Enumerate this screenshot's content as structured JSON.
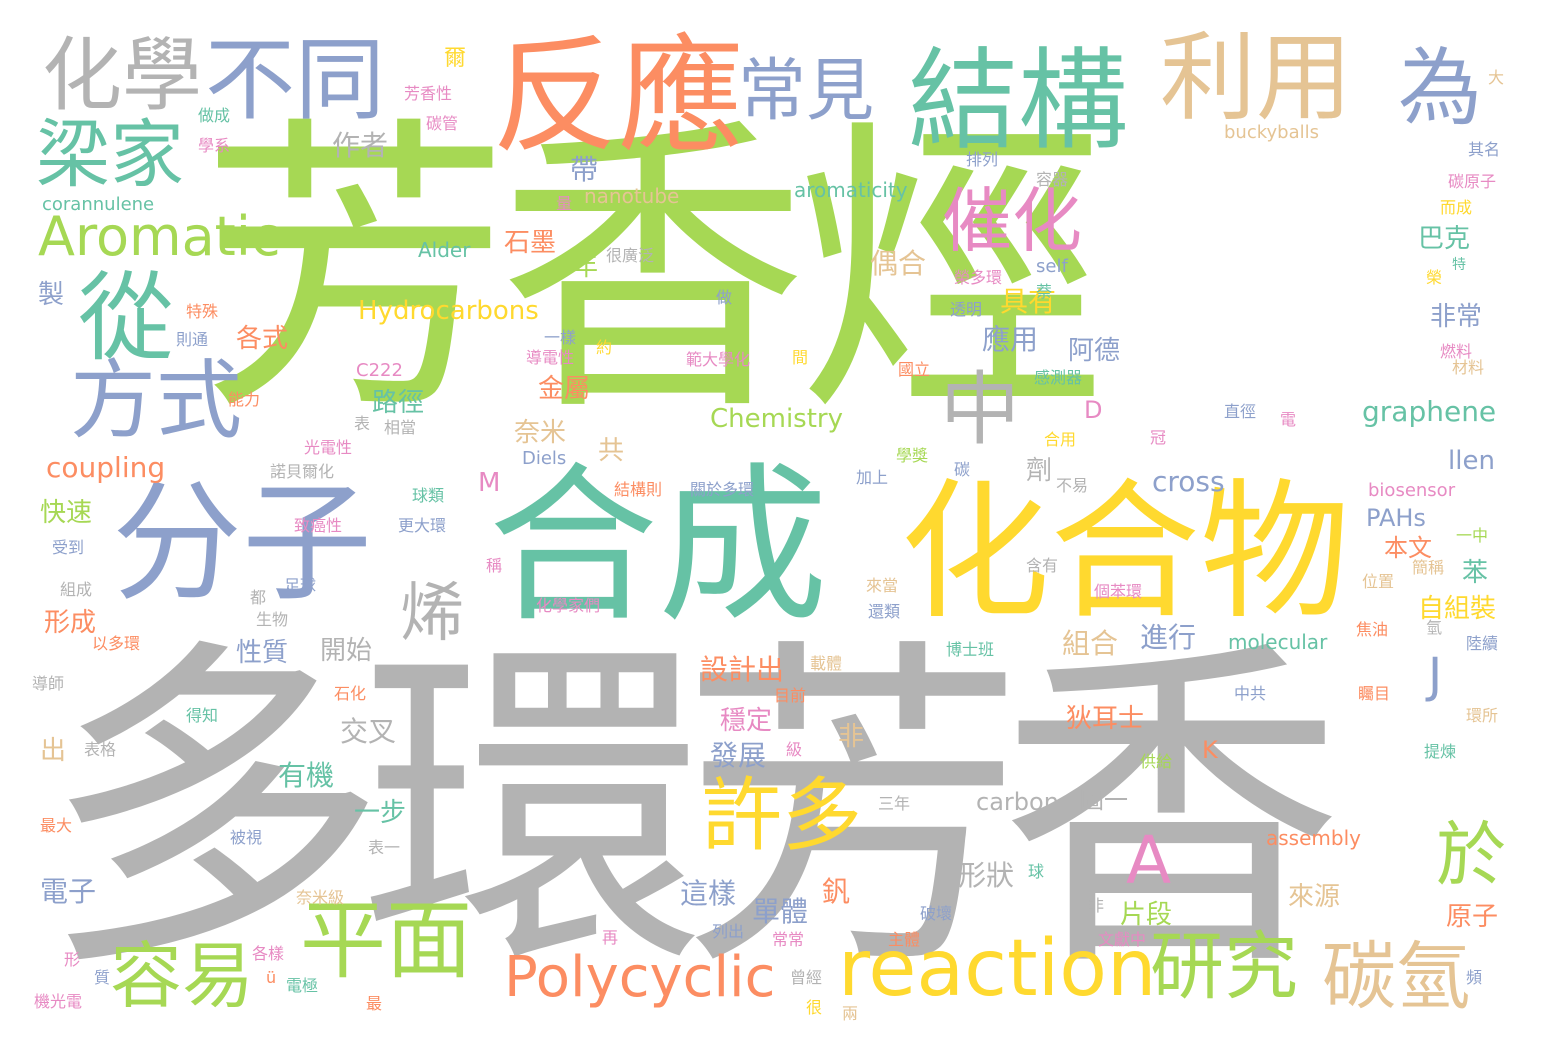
{
  "palette": {
    "grey": "#b3b3b3",
    "green": "#a6d854",
    "teal": "#66c2a5",
    "orange": "#fc8d62",
    "blue": "#8da0cb",
    "yellow": "#ffd92f",
    "tan": "#e5c494",
    "pink": "#e78ac3"
  },
  "words": [
    {
      "text": "芳香烴"
    },
    {
      "text": "多環芳香"
    },
    {
      "text": "合成"
    },
    {
      "text": "化合物"
    },
    {
      "text": "分子"
    },
    {
      "text": "反應"
    },
    {
      "text": "結構"
    },
    {
      "text": "利用"
    },
    {
      "text": "不同"
    },
    {
      "text": "化學"
    },
    {
      "text": "為"
    },
    {
      "text": "常見"
    },
    {
      "text": "梁家"
    },
    {
      "text": "催化"
    },
    {
      "text": "從"
    },
    {
      "text": "Aromatic"
    },
    {
      "text": "方式"
    },
    {
      "text": "中"
    },
    {
      "text": "烯"
    },
    {
      "text": "許多"
    },
    {
      "text": "平面"
    },
    {
      "text": "容易"
    },
    {
      "text": "reaction"
    },
    {
      "text": "研究"
    },
    {
      "text": "碳氫"
    },
    {
      "text": "Polycyclic"
    },
    {
      "text": "於"
    },
    {
      "text": "A"
    },
    {
      "text": "Hydrocarbons"
    },
    {
      "text": "Chemistry"
    },
    {
      "text": "graphene"
    },
    {
      "text": "coupling"
    },
    {
      "text": "cross"
    },
    {
      "text": "carbon"
    },
    {
      "text": "aromaticity"
    },
    {
      "text": "nanotube"
    },
    {
      "text": "corannulene"
    },
    {
      "text": "buckyballs"
    },
    {
      "text": "molecular"
    },
    {
      "text": "biosensor"
    },
    {
      "text": "assembly"
    },
    {
      "text": "PAHs"
    },
    {
      "text": "llen"
    },
    {
      "text": "Diels"
    },
    {
      "text": "Alder"
    },
    {
      "text": "self"
    },
    {
      "text": "C222"
    },
    {
      "text": "作者"
    },
    {
      "text": "帶"
    },
    {
      "text": "石墨"
    },
    {
      "text": "年"
    },
    {
      "text": "偶合"
    },
    {
      "text": "具有"
    },
    {
      "text": "應用"
    },
    {
      "text": "阿德"
    },
    {
      "text": "巴克"
    },
    {
      "text": "非常"
    },
    {
      "text": "路徑"
    },
    {
      "text": "金屬"
    },
    {
      "text": "奈米"
    },
    {
      "text": "各式"
    },
    {
      "text": "製"
    },
    {
      "text": "快速"
    },
    {
      "text": "形成"
    },
    {
      "text": "性質"
    },
    {
      "text": "開始"
    },
    {
      "text": "組合"
    },
    {
      "text": "進行"
    },
    {
      "text": "自組裝"
    },
    {
      "text": "設計出"
    },
    {
      "text": "本文"
    },
    {
      "text": "苯"
    },
    {
      "text": "狄耳士"
    },
    {
      "text": "穩定"
    },
    {
      "text": "發展"
    },
    {
      "text": "有機"
    },
    {
      "text": "交叉"
    },
    {
      "text": "一步"
    },
    {
      "text": "電子"
    },
    {
      "text": "這樣"
    },
    {
      "text": "單體"
    },
    {
      "text": "形狀"
    },
    {
      "text": "片段"
    },
    {
      "text": "來源"
    },
    {
      "text": "原子"
    },
    {
      "text": "出"
    },
    {
      "text": "非"
    },
    {
      "text": "圖一"
    },
    {
      "text": "劑"
    },
    {
      "text": "共"
    },
    {
      "text": "M"
    },
    {
      "text": "D"
    },
    {
      "text": "J"
    },
    {
      "text": "K"
    },
    {
      "text": "釩"
    },
    {
      "text": "爾"
    },
    {
      "text": "芳香性"
    },
    {
      "text": "做成"
    },
    {
      "text": "碳管"
    },
    {
      "text": "學系"
    },
    {
      "text": "大"
    },
    {
      "text": "其名"
    },
    {
      "text": "碳原子"
    },
    {
      "text": "而成"
    },
    {
      "text": "容器"
    },
    {
      "text": "排列"
    },
    {
      "text": "量"
    },
    {
      "text": "很廣泛"
    },
    {
      "text": "榮多環"
    },
    {
      "text": "透明"
    },
    {
      "text": "萘"
    },
    {
      "text": "特殊"
    },
    {
      "text": "則通"
    },
    {
      "text": "做"
    },
    {
      "text": "一樣"
    },
    {
      "text": "導電性"
    },
    {
      "text": "約"
    },
    {
      "text": "範大學化"
    },
    {
      "text": "間"
    },
    {
      "text": "能力"
    },
    {
      "text": "國立"
    },
    {
      "text": "感測器"
    },
    {
      "text": "燃料"
    },
    {
      "text": "材料"
    },
    {
      "text": "直徑"
    },
    {
      "text": "電"
    },
    {
      "text": "光電性"
    },
    {
      "text": "相當"
    },
    {
      "text": "諾貝爾化"
    },
    {
      "text": "表"
    },
    {
      "text": "學獎"
    },
    {
      "text": "冠"
    },
    {
      "text": "合用"
    },
    {
      "text": "不易"
    },
    {
      "text": "球類"
    },
    {
      "text": "結構則"
    },
    {
      "text": "關於多環"
    },
    {
      "text": "加上"
    },
    {
      "text": "更大環"
    },
    {
      "text": "致癌性"
    },
    {
      "text": "受到"
    },
    {
      "text": "一中"
    },
    {
      "text": "簡稱"
    },
    {
      "text": "位置"
    },
    {
      "text": "組成"
    },
    {
      "text": "足球"
    },
    {
      "text": "都"
    },
    {
      "text": "生物"
    },
    {
      "text": "來當"
    },
    {
      "text": "還類"
    },
    {
      "text": "化學家們"
    },
    {
      "text": "含有"
    },
    {
      "text": "個苯環"
    },
    {
      "text": "焦油"
    },
    {
      "text": "氫"
    },
    {
      "text": "陸續"
    },
    {
      "text": "以多環"
    },
    {
      "text": "博士班"
    },
    {
      "text": "載體"
    },
    {
      "text": "目前"
    },
    {
      "text": "中共"
    },
    {
      "text": "矚目"
    },
    {
      "text": "環所"
    },
    {
      "text": "得知"
    },
    {
      "text": "石化"
    },
    {
      "text": "表格"
    },
    {
      "text": "級"
    },
    {
      "text": "提煉"
    },
    {
      "text": "最大"
    },
    {
      "text": "被視"
    },
    {
      "text": "表一"
    },
    {
      "text": "三年"
    },
    {
      "text": "奈米級"
    },
    {
      "text": "非"
    },
    {
      "text": "破壞"
    },
    {
      "text": "球"
    },
    {
      "text": "再"
    },
    {
      "text": "列出"
    },
    {
      "text": "常常"
    },
    {
      "text": "主體"
    },
    {
      "text": "文獻中"
    },
    {
      "text": "形"
    },
    {
      "text": "質"
    },
    {
      "text": "各樣"
    },
    {
      "text": "ü"
    },
    {
      "text": "曾經"
    },
    {
      "text": "最"
    },
    {
      "text": "機光電"
    },
    {
      "text": "電極"
    },
    {
      "text": "很"
    },
    {
      "text": "頻"
    },
    {
      "text": "稱"
    },
    {
      "text": "導師"
    },
    {
      "text": "榮"
    },
    {
      "text": "特"
    },
    {
      "text": "碳"
    },
    {
      "text": "兩"
    },
    {
      "text": "供給"
    }
  ]
}
